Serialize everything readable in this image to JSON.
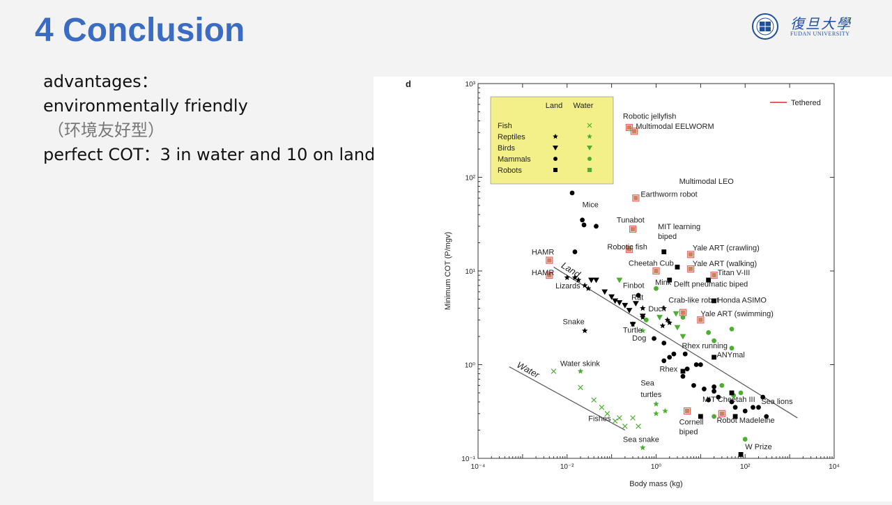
{
  "slide": {
    "title": "4 Conclusion",
    "logo_cn": "復旦大學",
    "logo_en": "FUDAN UNIVERSITY",
    "lines": [
      "advantages：",
      "environmentally friendly",
      "（环境友好型）",
      "perfect COT：3 in water and 10 on land"
    ]
  },
  "colors": {
    "title": "#3a6cc4",
    "land": "#000000",
    "water": "#4caf32",
    "robot_tethered": "#c9825a",
    "tethered_line": "#e06060",
    "legend_bg": "#f3f08a"
  },
  "chart_data": {
    "type": "scatter",
    "panel_label": "d",
    "xlabel": "Body mass (kg)",
    "ylabel": "Minimum COT (P/mgv)",
    "x_scale": "log",
    "y_scale": "log",
    "xlim": [
      0.0001,
      10000
    ],
    "ylim": [
      0.1,
      1000
    ],
    "x_ticks": [
      {
        "value": 0.0001,
        "label": "10⁻⁴"
      },
      {
        "value": 0.01,
        "label": "10⁻²"
      },
      {
        "value": 1,
        "label": "10⁰"
      },
      {
        "value": 100,
        "label": "10²"
      },
      {
        "value": 10000,
        "label": "10⁴"
      }
    ],
    "y_ticks": [
      {
        "value": 0.1,
        "label": "10⁻¹"
      },
      {
        "value": 1,
        "label": "10⁰"
      },
      {
        "value": 10,
        "label": "10¹"
      },
      {
        "value": 100,
        "label": "10²"
      },
      {
        "value": 1000,
        "label": "10³"
      }
    ],
    "legend": {
      "placement": "top-left",
      "col_land": "Land",
      "col_water": "Water",
      "rows": [
        {
          "label": "Fish",
          "land_marker": "",
          "water_marker": "cross"
        },
        {
          "label": "Reptiles",
          "land_marker": "star",
          "water_marker": "star"
        },
        {
          "label": "Birds",
          "land_marker": "triangle",
          "water_marker": "triangle"
        },
        {
          "label": "Mammals",
          "land_marker": "circle",
          "water_marker": "circle"
        },
        {
          "label": "Robots",
          "land_marker": "square",
          "water_marker": "square"
        }
      ],
      "tethered_label": "Tethered"
    },
    "trend_lines": [
      {
        "label": "Land",
        "x": [
          0.005,
          1500
        ],
        "y": [
          11,
          0.27
        ]
      },
      {
        "label": "Water",
        "x": [
          0.0005,
          0.2
        ],
        "y": [
          0.95,
          0.2
        ]
      }
    ],
    "series": [
      {
        "name": "Land mammals",
        "marker": "circle",
        "color": "#000000",
        "points": [
          [
            0.013,
            68
          ],
          [
            0.022,
            35
          ],
          [
            0.024,
            31
          ],
          [
            0.045,
            30
          ],
          [
            0.015,
            16
          ],
          [
            0.4,
            5.5
          ],
          [
            0.9,
            1.9
          ],
          [
            1.5,
            1.7
          ],
          [
            2.5,
            1.3
          ],
          [
            1.5,
            1.1
          ],
          [
            2,
            1.2
          ],
          [
            4.5,
            1.3
          ],
          [
            5,
            0.9
          ],
          [
            4,
            0.75
          ],
          [
            8,
            1
          ],
          [
            10,
            1
          ],
          [
            7,
            0.6
          ],
          [
            12,
            0.55
          ],
          [
            20,
            0.58
          ],
          [
            20,
            0.52
          ],
          [
            25,
            0.45
          ],
          [
            15,
            0.42
          ],
          [
            50,
            0.4
          ],
          [
            60,
            0.35
          ],
          [
            100,
            0.32
          ],
          [
            150,
            0.35
          ],
          [
            250,
            0.45
          ],
          [
            300,
            0.28
          ],
          [
            200,
            0.35
          ]
        ]
      },
      {
        "name": "Water mammals",
        "marker": "circle",
        "color": "#4caf32",
        "points": [
          [
            1,
            6.5
          ],
          [
            0.6,
            3
          ],
          [
            4,
            3.2
          ],
          [
            15,
            2.2
          ],
          [
            50,
            1.5
          ],
          [
            20,
            1.8
          ],
          [
            50,
            2.4
          ],
          [
            80,
            0.5
          ],
          [
            20,
            0.28
          ],
          [
            55,
            0.47
          ],
          [
            30,
            0.6
          ],
          [
            100,
            0.16
          ]
        ]
      },
      {
        "name": "Land reptiles",
        "marker": "star",
        "color": "#000000",
        "points": [
          [
            0.01,
            8.5
          ],
          [
            0.015,
            8.5
          ],
          [
            0.018,
            8
          ],
          [
            0.025,
            7
          ],
          [
            0.03,
            6.5
          ],
          [
            0.025,
            2.3
          ],
          [
            0.3,
            2.7
          ],
          [
            0.5,
            4
          ],
          [
            0.5,
            3.2
          ],
          [
            1.4,
            2.6
          ],
          [
            1.5,
            4
          ],
          [
            2,
            2.8
          ],
          [
            1.8,
            3
          ]
        ]
      },
      {
        "name": "Water reptiles",
        "marker": "star",
        "color": "#4caf32",
        "points": [
          [
            0.02,
            0.85
          ],
          [
            0.5,
            2.3
          ],
          [
            1,
            0.38
          ],
          [
            1.6,
            0.32
          ],
          [
            0.5,
            0.13
          ],
          [
            1,
            0.3
          ]
        ]
      },
      {
        "name": "Land birds",
        "marker": "triangle",
        "color": "#000000",
        "points": [
          [
            0.035,
            8
          ],
          [
            0.045,
            8
          ],
          [
            0.07,
            6
          ],
          [
            0.1,
            5.3
          ],
          [
            0.12,
            4.8
          ],
          [
            0.15,
            4.6
          ],
          [
            0.2,
            4.3
          ],
          [
            0.25,
            3.8
          ],
          [
            0.3,
            2.7
          ],
          [
            0.5,
            3.3
          ],
          [
            0.35,
            4.5
          ]
        ]
      },
      {
        "name": "Water birds",
        "marker": "triangle",
        "color": "#4caf32",
        "points": [
          [
            0.15,
            8
          ],
          [
            2.8,
            3.5
          ],
          [
            1.2,
            3.2
          ],
          [
            3,
            2.5
          ],
          [
            4,
            2
          ]
        ]
      },
      {
        "name": "Fish",
        "marker": "cross",
        "color": "#4caf32",
        "points": [
          [
            0.005,
            0.85
          ],
          [
            0.02,
            0.57
          ],
          [
            0.04,
            0.42
          ],
          [
            0.06,
            0.35
          ],
          [
            0.08,
            0.3
          ],
          [
            0.12,
            0.25
          ],
          [
            0.15,
            0.27
          ],
          [
            0.2,
            0.22
          ],
          [
            0.3,
            0.27
          ],
          [
            0.4,
            0.22
          ]
        ]
      },
      {
        "name": "Robots",
        "marker": "square",
        "color": "#000000",
        "points": [
          [
            3,
            11
          ],
          [
            1.5,
            16
          ],
          [
            2,
            8
          ],
          [
            15,
            8
          ],
          [
            20,
            4.8
          ],
          [
            20,
            1.2
          ],
          [
            4,
            0.85
          ],
          [
            10,
            0.28
          ],
          [
            50,
            0.5
          ],
          [
            60,
            0.28
          ],
          [
            80,
            0.11
          ]
        ]
      },
      {
        "name": "Robots (tethered)",
        "marker": "square",
        "color": "#c9825a",
        "points": [
          [
            0.25,
            340
          ],
          [
            0.32,
            310
          ],
          [
            0.35,
            60
          ],
          [
            0.3,
            28
          ],
          [
            0.25,
            17
          ],
          [
            1,
            10
          ],
          [
            6,
            15
          ],
          [
            6,
            10.5
          ],
          [
            10,
            3
          ],
          [
            4,
            3.6
          ],
          [
            20,
            9
          ],
          [
            5,
            0.32
          ],
          [
            30,
            0.3
          ],
          [
            0.004,
            13
          ],
          [
            0.004,
            9
          ]
        ]
      }
    ],
    "annotations": [
      {
        "text": "Robotic jellyfish",
        "x": 0.18,
        "y": 420
      },
      {
        "text": "Multimodal EELWORM",
        "x": 0.35,
        "y": 330
      },
      {
        "text": "Multimodal LEO",
        "x": 3.3,
        "y": 85
      },
      {
        "text": "Earthworm robot",
        "x": 0.45,
        "y": 62
      },
      {
        "text": "Mice",
        "x": 0.022,
        "y": 48
      },
      {
        "text": "Tunabot",
        "x": 0.13,
        "y": 33
      },
      {
        "text": "MIT learning",
        "x": 1.1,
        "y": 28
      },
      {
        "text": "biped",
        "x": 1.1,
        "y": 22
      },
      {
        "text": "Robotic fish",
        "x": 0.08,
        "y": 17
      },
      {
        "text": "HAMR",
        "x": 0.0016,
        "y": 15
      },
      {
        "text": "HAMR",
        "x": 0.0016,
        "y": 9
      },
      {
        "text": "Yale ART (crawling)",
        "x": 6.6,
        "y": 16.5
      },
      {
        "text": "Cheetah Cub",
        "x": 0.24,
        "y": 11.4
      },
      {
        "text": "Yale ART (walking)",
        "x": 6.6,
        "y": 11.3
      },
      {
        "text": "Titan V-III",
        "x": 24,
        "y": 9
      },
      {
        "text": "Mink",
        "x": 0.95,
        "y": 7.1
      },
      {
        "text": "Delft pneumatic biped",
        "x": 2.5,
        "y": 6.8
      },
      {
        "text": "Lizards",
        "x": 0.0055,
        "y": 6.5
      },
      {
        "text": "Finbot",
        "x": 0.18,
        "y": 6.6
      },
      {
        "text": "Rat",
        "x": 0.28,
        "y": 4.9
      },
      {
        "text": "Crab-like robot",
        "x": 1.9,
        "y": 4.6
      },
      {
        "text": "Honda ASIMO",
        "x": 24,
        "y": 4.6
      },
      {
        "text": "Duck",
        "x": 0.67,
        "y": 3.7
      },
      {
        "text": "Yale ART (swimming)",
        "x": 10,
        "y": 3.3
      },
      {
        "text": "Snake",
        "x": 0.008,
        "y": 2.7
      },
      {
        "text": "Turtle",
        "x": 0.18,
        "y": 2.2
      },
      {
        "text": "Dog",
        "x": 0.29,
        "y": 1.8
      },
      {
        "text": "Rhex running",
        "x": 3.8,
        "y": 1.5
      },
      {
        "text": "ANYmal",
        "x": 23,
        "y": 1.2
      },
      {
        "text": "Water skink",
        "x": 0.007,
        "y": 0.97
      },
      {
        "text": "Rhex",
        "x": 1.2,
        "y": 0.84
      },
      {
        "text": "Sea",
        "x": 0.45,
        "y": 0.6
      },
      {
        "text": "turtles",
        "x": 0.45,
        "y": 0.45
      },
      {
        "text": "MIT Cheetah III",
        "x": 11,
        "y": 0.4
      },
      {
        "text": "Sea lions",
        "x": 230,
        "y": 0.38
      },
      {
        "text": "Fishes",
        "x": 0.03,
        "y": 0.25
      },
      {
        "text": "Robot Madeleine",
        "x": 23,
        "y": 0.24
      },
      {
        "text": "Cornell",
        "x": 3.3,
        "y": 0.23
      },
      {
        "text": "biped",
        "x": 3.3,
        "y": 0.18
      },
      {
        "text": "Sea snake",
        "x": 0.18,
        "y": 0.15
      },
      {
        "text": "W Prize",
        "x": 100,
        "y": 0.125
      }
    ]
  }
}
